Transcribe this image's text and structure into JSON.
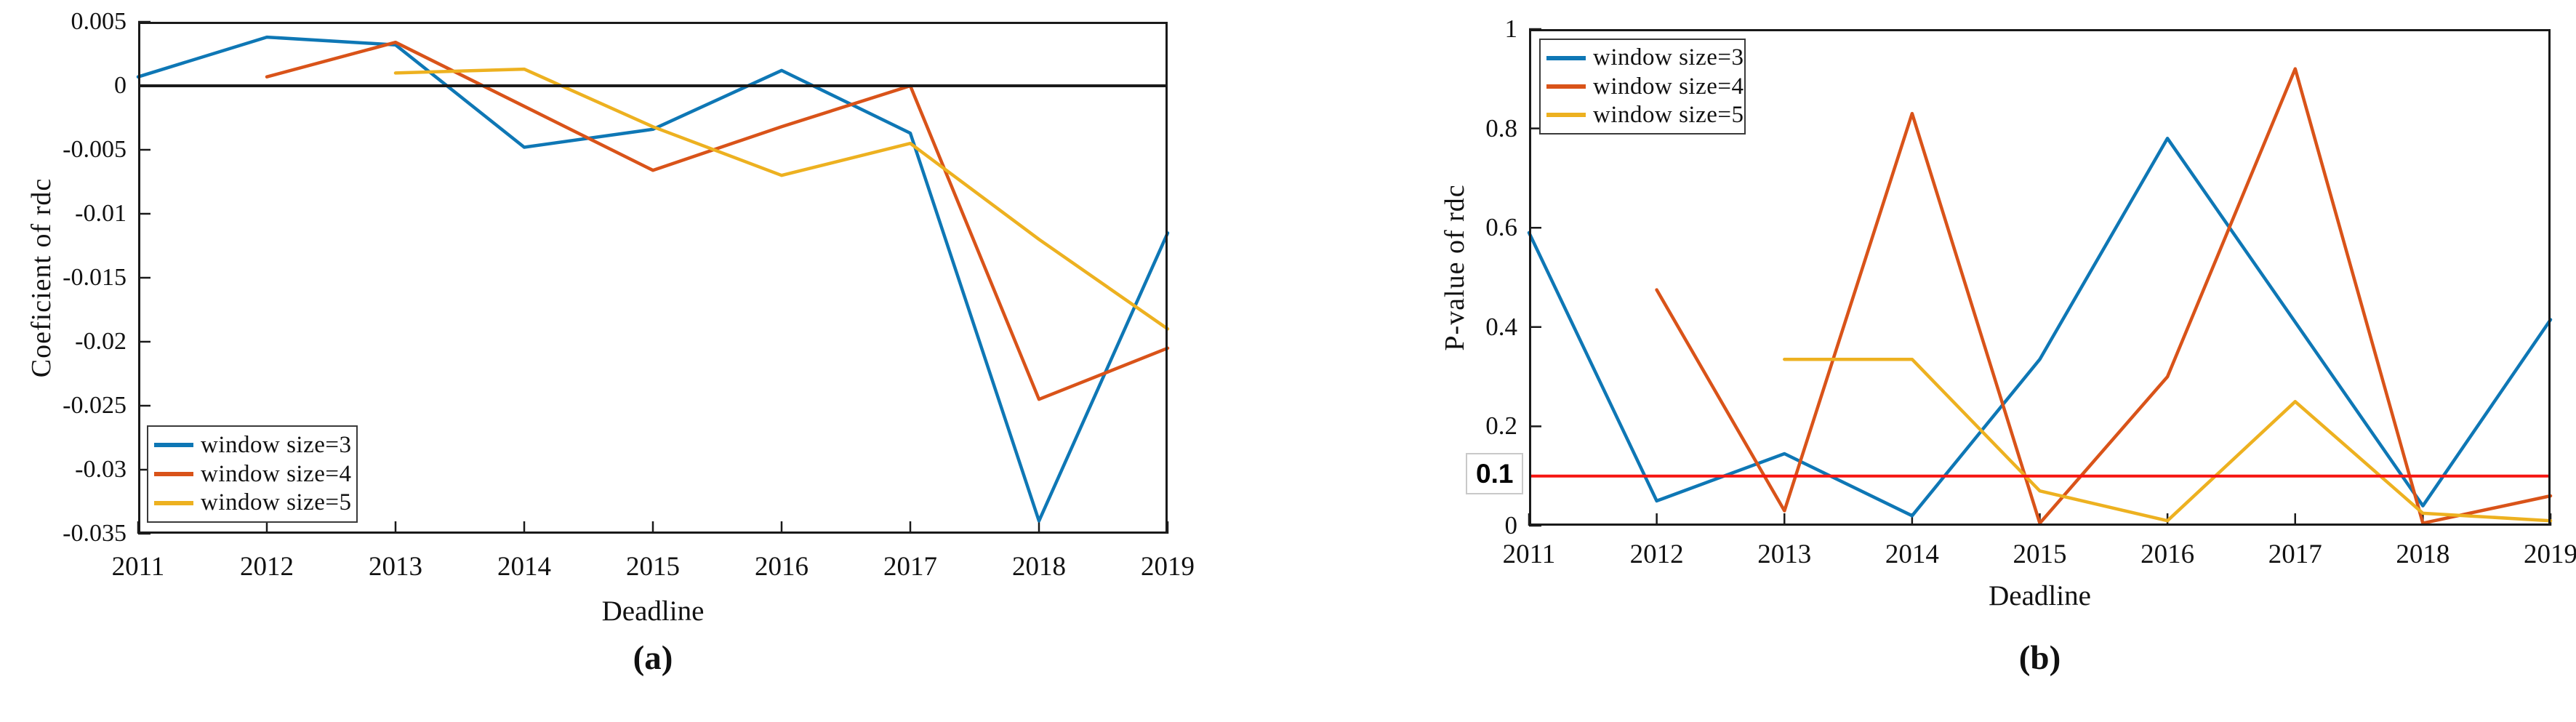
{
  "figure": {
    "background": "#ffffff",
    "captions": {
      "a": "(a)",
      "b": "(b)"
    }
  },
  "colors": {
    "series_blue": "#0e77b5",
    "series_orange": "#d95319",
    "series_yellow": "#edb120",
    "ref_red": "#f61511",
    "axis": "#1a1a1a"
  },
  "chart_data": [
    {
      "id": "a",
      "type": "line",
      "xlabel": "Deadline",
      "ylabel": "Coeficient of rdc",
      "x": [
        2011,
        2012,
        2013,
        2014,
        2015,
        2016,
        2017,
        2018,
        2019
      ],
      "xlim": [
        2011,
        2019
      ],
      "ylim": [
        -0.035,
        0.005
      ],
      "yticks": [
        0.005,
        0,
        -0.005,
        -0.01,
        -0.015,
        -0.02,
        -0.025,
        -0.03,
        -0.035
      ],
      "ytick_labels": [
        "0.005",
        "0",
        "-0.005",
        "-0.01",
        "-0.015",
        "-0.02",
        "-0.025",
        "-0.03",
        "-0.035"
      ],
      "grid": false,
      "legend_position": "lower-left",
      "reference_lines": [
        {
          "name": "zero-reference-line",
          "y": 0,
          "color_key": "axis",
          "width": 4
        }
      ],
      "series": [
        {
          "name": "window size=3",
          "color_key": "series_blue",
          "values": [
            0.0007,
            0.0038,
            0.0032,
            -0.0048,
            -0.0034,
            0.0012,
            -0.0037,
            -0.034,
            -0.0115
          ]
        },
        {
          "name": "window size=4",
          "color_key": "series_orange",
          "values": [
            null,
            0.0007,
            0.0034,
            -0.0016,
            -0.0066,
            -0.0032,
            0.0,
            -0.0245,
            -0.0205
          ]
        },
        {
          "name": "window size=5",
          "color_key": "series_yellow",
          "values": [
            null,
            null,
            0.001,
            0.0013,
            -0.0032,
            -0.007,
            -0.0045,
            -0.012,
            -0.019
          ]
        }
      ]
    },
    {
      "id": "b",
      "type": "line",
      "xlabel": "Deadline",
      "ylabel": "P-value of rdc",
      "x": [
        2011,
        2012,
        2013,
        2014,
        2015,
        2016,
        2017,
        2018,
        2019
      ],
      "xlim": [
        2011,
        2019
      ],
      "ylim": [
        0,
        1
      ],
      "yticks": [
        1,
        0.8,
        0.6,
        0.4,
        0.2,
        0
      ],
      "ytick_labels": [
        "1",
        "0.8",
        "0.6",
        "0.4",
        "0.2",
        "0"
      ],
      "grid": false,
      "legend_position": "upper-left",
      "annotation": {
        "label": "0.1",
        "y": 0.1,
        "boxed": true
      },
      "reference_lines": [
        {
          "name": "significance-reference-line",
          "y": 0.1,
          "color_key": "ref_red",
          "width": 4
        }
      ],
      "series": [
        {
          "name": "window size=3",
          "color_key": "series_blue",
          "values": [
            0.59,
            0.05,
            0.145,
            0.02,
            0.335,
            0.78,
            0.41,
            0.04,
            0.415
          ]
        },
        {
          "name": "window size=4",
          "color_key": "series_orange",
          "values": [
            null,
            0.475,
            0.03,
            0.83,
            0.005,
            0.3,
            0.92,
            0.005,
            0.06
          ]
        },
        {
          "name": "window size=5",
          "color_key": "series_yellow",
          "values": [
            null,
            null,
            0.335,
            0.335,
            0.07,
            0.01,
            0.25,
            0.025,
            0.01
          ]
        }
      ]
    }
  ]
}
